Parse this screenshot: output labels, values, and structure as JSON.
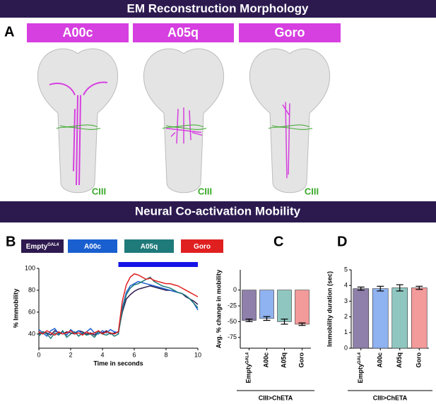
{
  "banners": [
    "EM Reconstruction Morphology",
    "Neural Co-activation Mobility"
  ],
  "panel_labels": [
    "A",
    "B",
    "C",
    "D"
  ],
  "neurons": [
    "A00c",
    "A05q",
    "Goro"
  ],
  "neuron_markers": [
    "CIII",
    "CIII",
    "CIII"
  ],
  "chart_data": [
    {
      "type": "line",
      "xlabel": "Time in seconds",
      "ylabel": "% Immobility",
      "x": [
        0,
        0.25,
        0.5,
        0.75,
        1,
        1.25,
        1.5,
        1.75,
        2,
        2.25,
        2.5,
        2.75,
        3,
        3.25,
        3.5,
        3.75,
        4,
        4.25,
        4.5,
        4.75,
        5,
        5.25,
        5.5,
        5.75,
        6,
        6.25,
        6.5,
        6.75,
        7,
        7.25,
        7.5,
        7.75,
        8,
        8.25,
        8.5,
        8.75,
        9,
        9.25,
        9.5,
        9.75,
        10
      ],
      "xlim": [
        0,
        10
      ],
      "xticks": [
        0,
        2,
        4,
        6,
        8,
        10
      ],
      "ylim": [
        27,
        100
      ],
      "yticks": [
        40,
        60,
        80,
        100
      ],
      "stimulus": {
        "x": [
          5,
          10
        ],
        "color": "#1414e6"
      },
      "series": [
        {
          "name": "Empty",
          "superscript": "GAL4",
          "color": "#2e1a4f",
          "values": [
            40,
            42,
            41,
            39,
            43,
            41,
            40,
            42,
            41,
            40,
            43,
            42,
            40,
            41,
            39,
            42,
            41,
            43,
            40,
            41,
            42,
            60,
            72,
            76,
            79,
            81,
            82,
            83,
            84,
            83,
            82,
            81,
            80,
            80,
            79,
            78,
            77,
            74,
            72,
            70,
            67
          ]
        },
        {
          "name": "A00c",
          "color": "#1a5fd0",
          "values": [
            44,
            41,
            38,
            43,
            45,
            40,
            42,
            39,
            44,
            41,
            43,
            40,
            42,
            45,
            41,
            40,
            43,
            41,
            44,
            42,
            41,
            64,
            78,
            84,
            86,
            88,
            87,
            86,
            85,
            84,
            83,
            82,
            81,
            80,
            79,
            78,
            77,
            75,
            72,
            68,
            62
          ]
        },
        {
          "name": "A05q",
          "color": "#1f7a7a",
          "values": [
            38,
            42,
            40,
            36,
            41,
            39,
            43,
            37,
            40,
            42,
            38,
            41,
            39,
            40,
            37,
            42,
            40,
            39,
            41,
            38,
            40,
            62,
            76,
            82,
            85,
            86,
            88,
            90,
            92,
            88,
            86,
            84,
            83,
            82,
            80,
            78,
            77,
            75,
            72,
            68,
            64
          ]
        },
        {
          "name": "Goro",
          "color": "#e02020",
          "values": [
            42,
            40,
            43,
            41,
            39,
            42,
            40,
            41,
            43,
            40,
            41,
            39,
            42,
            40,
            41,
            43,
            40,
            42,
            41,
            40,
            42,
            70,
            85,
            92,
            95,
            94,
            92,
            90,
            91,
            89,
            88,
            87,
            86,
            86,
            85,
            84,
            82,
            80,
            78,
            76,
            74
          ]
        }
      ]
    },
    {
      "type": "bar",
      "ylabel": "Avg. % change in mobility",
      "xlabel": "CIII>ChETA",
      "categories": [
        "Empty",
        "A00c",
        "A05q",
        "Goro"
      ],
      "category_superscript": "GAL4",
      "values": [
        -48,
        -45,
        -50,
        -54
      ],
      "errors": [
        2,
        3,
        4,
        2
      ],
      "colors": [
        "#8e80aa",
        "#8fb2f0",
        "#8fc7c0",
        "#f39a9a"
      ],
      "ylim": [
        -92,
        32
      ],
      "yticks": [
        -75,
        -50,
        -25,
        0
      ]
    },
    {
      "type": "bar",
      "ylabel": "Immobility duration (sec)",
      "xlabel": "CIII>ChETA",
      "categories": [
        "Empty",
        "A00c",
        "A05q",
        "Goro"
      ],
      "category_superscript": "GAL4",
      "values": [
        3.8,
        3.8,
        3.85,
        3.85
      ],
      "errors": [
        0.1,
        0.15,
        0.2,
        0.1
      ],
      "colors": [
        "#8e80aa",
        "#8fb2f0",
        "#8fc7c0",
        "#f39a9a"
      ],
      "ylim": [
        0,
        5
      ],
      "yticks": [
        0,
        1,
        2,
        3,
        4,
        5
      ]
    }
  ]
}
